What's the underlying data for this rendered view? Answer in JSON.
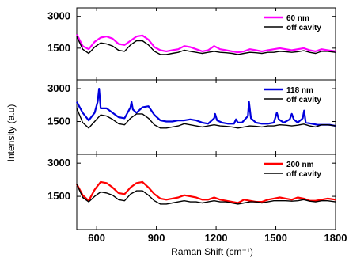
{
  "chart_data": {
    "type": "line",
    "xlabel": "Raman Shift (cm⁻¹)",
    "ylabel": "Intensity (a.u)",
    "xlim": [
      500,
      1800
    ],
    "x_ticks": [
      "600",
      "900",
      "1200",
      "1500",
      "1800"
    ],
    "ylim": [
      0,
      3400
    ],
    "y_ticks": [
      "1500",
      "3000"
    ],
    "grid": false,
    "legend_position": "top-right",
    "panels": [
      {
        "y_tick_labels": [
          "1500",
          "3000"
        ],
        "series": [
          {
            "name": "60 nm",
            "color": "#ff00ff",
            "x": [
              500,
              530,
              560,
              590,
              620,
              650,
              680,
              710,
              740,
              770,
              800,
              830,
              860,
              890,
              920,
              950,
              980,
              1010,
              1040,
              1070,
              1100,
              1130,
              1160,
              1190,
              1220,
              1250,
              1280,
              1310,
              1340,
              1370,
              1400,
              1430,
              1460,
              1490,
              1520,
              1550,
              1580,
              1610,
              1640,
              1670,
              1700,
              1730,
              1760,
              1800
            ],
            "values": [
              2150,
              1600,
              1450,
              1800,
              2000,
              2050,
              1950,
              1700,
              1650,
              1850,
              2050,
              2100,
              1900,
              1550,
              1400,
              1350,
              1400,
              1450,
              1600,
              1550,
              1450,
              1350,
              1400,
              1600,
              1450,
              1400,
              1350,
              1300,
              1350,
              1450,
              1400,
              1350,
              1400,
              1450,
              1500,
              1450,
              1400,
              1450,
              1500,
              1400,
              1350,
              1450,
              1400,
              1350
            ]
          },
          {
            "name": "off cavity",
            "color": "#000000",
            "x": [
              500,
              530,
              560,
              590,
              620,
              650,
              680,
              710,
              740,
              770,
              800,
              830,
              860,
              890,
              920,
              950,
              980,
              1010,
              1040,
              1070,
              1100,
              1130,
              1160,
              1190,
              1220,
              1250,
              1280,
              1310,
              1340,
              1370,
              1400,
              1430,
              1460,
              1490,
              1520,
              1550,
              1580,
              1610,
              1640,
              1670,
              1700,
              1730,
              1760,
              1800
            ],
            "values": [
              2050,
              1450,
              1250,
              1550,
              1750,
              1700,
              1600,
              1400,
              1350,
              1650,
              1850,
              1850,
              1650,
              1350,
              1200,
              1200,
              1250,
              1300,
              1400,
              1350,
              1300,
              1250,
              1300,
              1350,
              1300,
              1280,
              1250,
              1200,
              1250,
              1300,
              1280,
              1250,
              1300,
              1300,
              1350,
              1330,
              1300,
              1330,
              1380,
              1300,
              1250,
              1350,
              1350,
              1300
            ]
          }
        ]
      },
      {
        "y_tick_labels": [
          "1500",
          "3000"
        ],
        "series": [
          {
            "name": "118 nm",
            "color": "#0000dd",
            "x": [
              500,
              530,
              560,
              590,
              605,
              612,
              620,
              650,
              680,
              710,
              740,
              770,
              775,
              782,
              800,
              830,
              860,
              890,
              920,
              950,
              980,
              1010,
              1040,
              1070,
              1100,
              1130,
              1160,
              1190,
              1195,
              1205,
              1230,
              1260,
              1290,
              1300,
              1310,
              1330,
              1360,
              1365,
              1375,
              1400,
              1430,
              1460,
              1490,
              1505,
              1515,
              1540,
              1570,
              1580,
              1590,
              1610,
              1635,
              1642,
              1650,
              1680,
              1710,
              1740,
              1770,
              1800
            ],
            "values": [
              2400,
              1900,
              1550,
              1900,
              2400,
              3000,
              2100,
              2100,
              1900,
              1700,
              1650,
              2150,
              2400,
              2050,
              1900,
              2150,
              2200,
              1800,
              1550,
              1500,
              1500,
              1550,
              1550,
              1600,
              1550,
              1450,
              1400,
              1650,
              1850,
              1550,
              1450,
              1400,
              1400,
              1600,
              1450,
              1450,
              1750,
              2400,
              1650,
              1450,
              1400,
              1400,
              1450,
              1900,
              1600,
              1450,
              1600,
              1850,
              1600,
              1450,
              1650,
              2000,
              1450,
              1400,
              1350,
              1350,
              1350,
              1300
            ]
          },
          {
            "name": "off cavity",
            "color": "#000000",
            "x": [
              500,
              530,
              560,
              590,
              620,
              650,
              680,
              710,
              740,
              770,
              800,
              830,
              860,
              890,
              920,
              950,
              980,
              1010,
              1040,
              1070,
              1100,
              1130,
              1160,
              1190,
              1220,
              1250,
              1280,
              1310,
              1340,
              1370,
              1400,
              1430,
              1460,
              1490,
              1520,
              1550,
              1580,
              1610,
              1640,
              1670,
              1700,
              1730,
              1760,
              1800
            ],
            "values": [
              2100,
              1450,
              1200,
              1500,
              1800,
              1750,
              1600,
              1400,
              1350,
              1650,
              1850,
              1850,
              1650,
              1350,
              1200,
              1200,
              1250,
              1300,
              1400,
              1350,
              1300,
              1250,
              1300,
              1350,
              1300,
              1280,
              1250,
              1200,
              1250,
              1300,
              1280,
              1250,
              1300,
              1300,
              1350,
              1330,
              1300,
              1330,
              1380,
              1300,
              1250,
              1350,
              1350,
              1300
            ]
          }
        ]
      },
      {
        "y_tick_labels": [
          "1500",
          "3000"
        ],
        "series": [
          {
            "name": "200 nm",
            "color": "#ff0000",
            "x": [
              500,
              530,
              560,
              590,
              620,
              650,
              680,
              710,
              740,
              770,
              800,
              830,
              860,
              890,
              920,
              950,
              980,
              1010,
              1040,
              1070,
              1100,
              1130,
              1160,
              1190,
              1220,
              1250,
              1280,
              1310,
              1340,
              1370,
              1400,
              1430,
              1460,
              1490,
              1520,
              1550,
              1580,
              1610,
              1640,
              1670,
              1700,
              1730,
              1760,
              1800
            ],
            "values": [
              2050,
              1550,
              1300,
              1800,
              2150,
              2100,
              1900,
              1650,
              1600,
              1900,
              2100,
              2150,
              1900,
              1600,
              1400,
              1350,
              1400,
              1450,
              1550,
              1500,
              1450,
              1350,
              1350,
              1450,
              1350,
              1300,
              1250,
              1200,
              1350,
              1300,
              1250,
              1250,
              1350,
              1400,
              1450,
              1400,
              1350,
              1450,
              1400,
              1300,
              1300,
              1350,
              1400,
              1350
            ]
          },
          {
            "name": "off cavity",
            "color": "#000000",
            "x": [
              500,
              530,
              560,
              590,
              620,
              650,
              680,
              710,
              740,
              770,
              800,
              830,
              860,
              890,
              920,
              950,
              980,
              1010,
              1040,
              1070,
              1100,
              1130,
              1160,
              1190,
              1220,
              1250,
              1280,
              1310,
              1340,
              1370,
              1400,
              1430,
              1460,
              1490,
              1520,
              1550,
              1580,
              1610,
              1640,
              1670,
              1700,
              1730,
              1760,
              1800
            ],
            "values": [
              2050,
              1450,
              1250,
              1500,
              1700,
              1650,
              1550,
              1350,
              1300,
              1600,
              1750,
              1750,
              1550,
              1300,
              1150,
              1150,
              1200,
              1250,
              1300,
              1250,
              1250,
              1200,
              1250,
              1300,
              1250,
              1250,
              1200,
              1150,
              1200,
              1250,
              1250,
              1200,
              1250,
              1300,
              1300,
              1300,
              1280,
              1300,
              1350,
              1280,
              1250,
              1300,
              1300,
              1250
            ]
          }
        ]
      }
    ]
  }
}
